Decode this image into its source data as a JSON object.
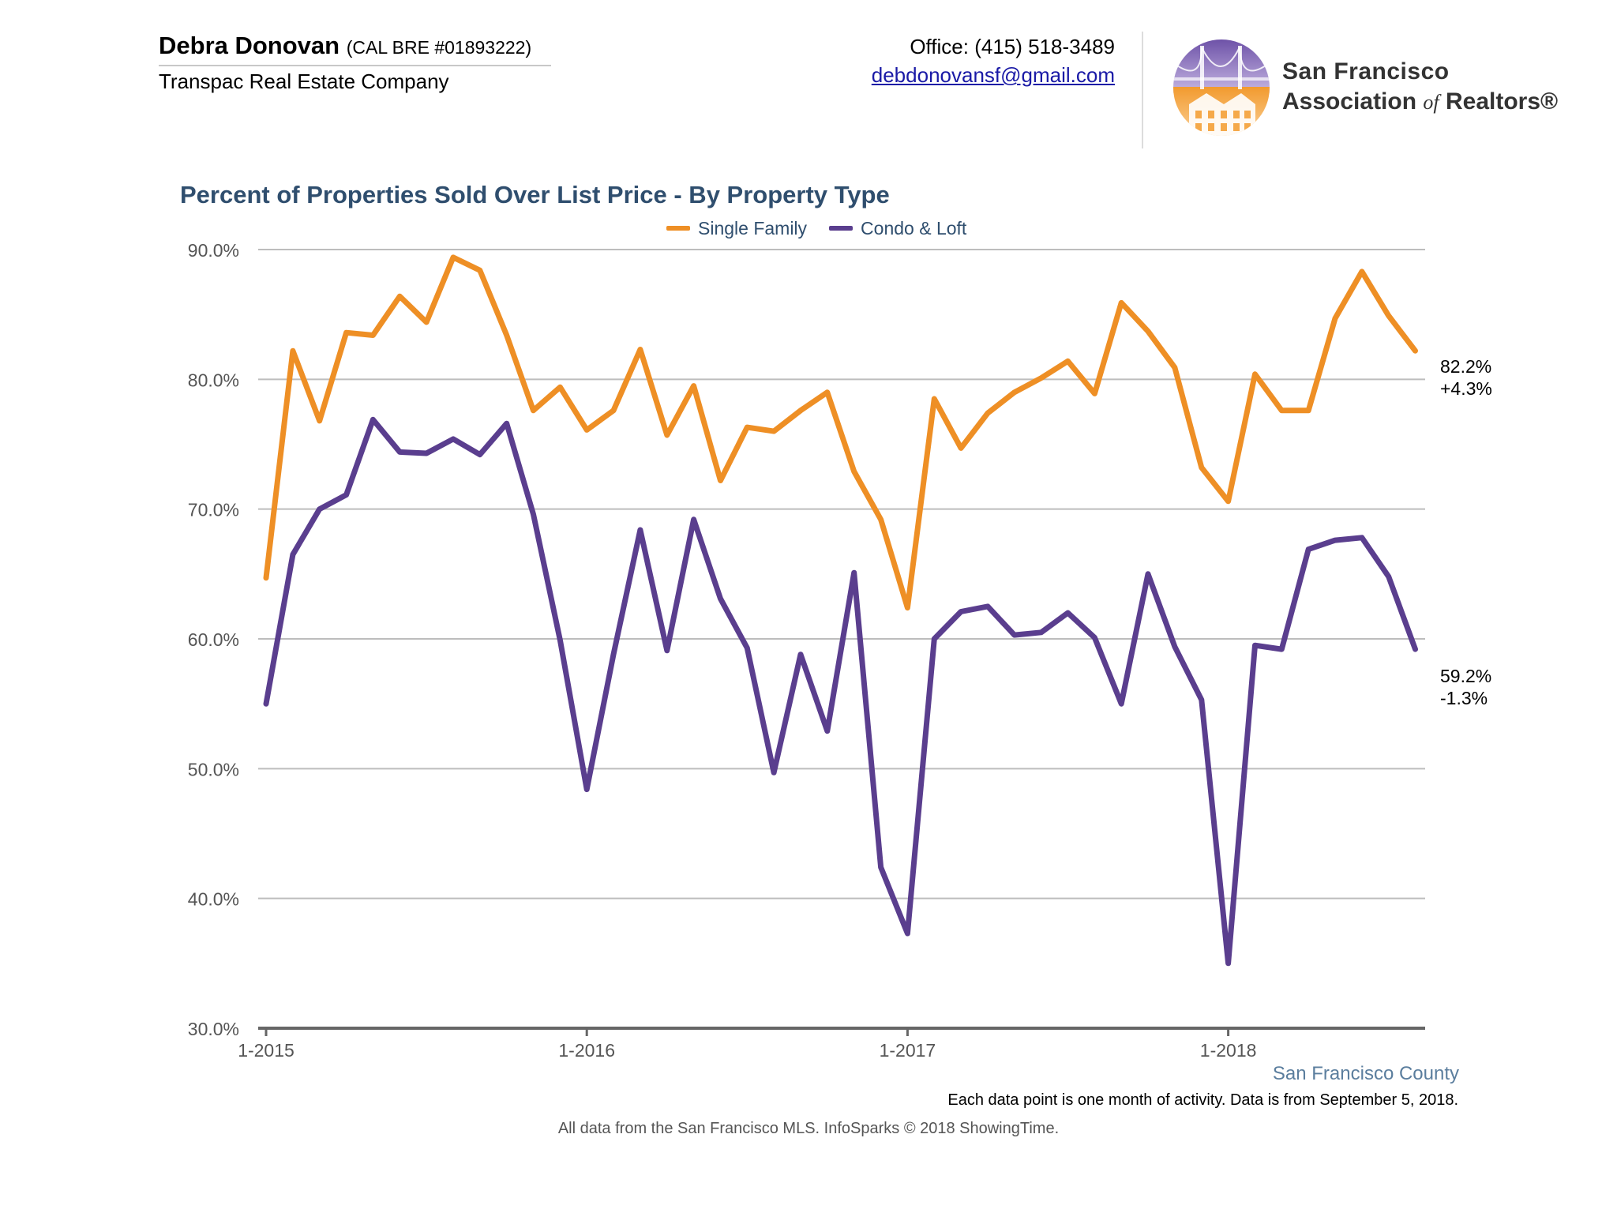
{
  "header": {
    "agent_name": "Debra Donovan",
    "agent_license": "(CAL BRE #01893222)",
    "company": "Transpac Real Estate Company",
    "phone": "Office: (415) 518-3489",
    "email": "debdonovansf@gmail.com",
    "logo_line1": "San Francisco",
    "logo_line2_pre": "Association",
    "logo_line2_of": "of",
    "logo_line2_post": "Realtors®"
  },
  "colors": {
    "single_family": "#ee8f25",
    "condo": "#5a3e8e",
    "title": "#2f4e6e",
    "grid": "#bdbdbd",
    "axis": "#666666"
  },
  "chart_data": {
    "type": "line",
    "title": "Percent of Properties Sold Over List Price - By Property Type",
    "xlabel": "",
    "ylabel": "",
    "ylim": [
      30,
      90
    ],
    "yticks": [
      "90.0%",
      "80.0%",
      "70.0%",
      "60.0%",
      "50.0%",
      "40.0%",
      "30.0%"
    ],
    "ytick_values": [
      90,
      80,
      70,
      60,
      50,
      40,
      30
    ],
    "xticks": [
      "1-2015",
      "1-2016",
      "1-2017",
      "1-2018"
    ],
    "xtick_index": [
      0,
      12,
      24,
      36
    ],
    "x": [
      "1-2015",
      "2-2015",
      "3-2015",
      "4-2015",
      "5-2015",
      "6-2015",
      "7-2015",
      "8-2015",
      "9-2015",
      "10-2015",
      "11-2015",
      "12-2015",
      "1-2016",
      "2-2016",
      "3-2016",
      "4-2016",
      "5-2016",
      "6-2016",
      "7-2016",
      "8-2016",
      "9-2016",
      "10-2016",
      "11-2016",
      "12-2016",
      "1-2017",
      "2-2017",
      "3-2017",
      "4-2017",
      "5-2017",
      "6-2017",
      "7-2017",
      "8-2017",
      "9-2017",
      "10-2017",
      "11-2017",
      "12-2017",
      "1-2018",
      "2-2018",
      "3-2018",
      "4-2018",
      "5-2018",
      "6-2018",
      "7-2018",
      "8-2018"
    ],
    "grid": true,
    "legend_position": "top-center",
    "series": [
      {
        "name": "Single Family",
        "end_label": "82.2%",
        "end_change": "+4.3%",
        "values": [
          64.7,
          82.2,
          76.8,
          83.6,
          83.4,
          86.4,
          84.4,
          89.4,
          88.4,
          83.4,
          77.6,
          79.4,
          76.1,
          77.6,
          82.3,
          75.7,
          79.5,
          72.2,
          76.3,
          76.0,
          77.6,
          79.0,
          72.9,
          69.2,
          62.4,
          78.5,
          74.7,
          77.4,
          79.0,
          80.1,
          81.4,
          78.9,
          85.9,
          83.7,
          80.9,
          73.2,
          70.6,
          80.4,
          77.6,
          77.6,
          84.7,
          88.3,
          84.9,
          82.2
        ]
      },
      {
        "name": "Condo & Loft",
        "end_label": "59.2%",
        "end_change": "-1.3%",
        "values": [
          55.0,
          66.5,
          70.0,
          71.1,
          76.9,
          74.4,
          74.3,
          75.4,
          74.2,
          76.6,
          69.6,
          59.9,
          48.4,
          58.8,
          68.4,
          59.1,
          69.2,
          63.1,
          59.3,
          49.7,
          58.8,
          52.9,
          65.1,
          42.4,
          37.3,
          60.0,
          62.1,
          62.5,
          60.3,
          60.5,
          62.0,
          60.1,
          55.0,
          65.0,
          59.4,
          55.3,
          35.0,
          59.5,
          59.2,
          66.9,
          67.6,
          67.8,
          64.8,
          59.2
        ]
      }
    ]
  },
  "footer": {
    "region": "San Francisco County",
    "note": "Each data point is one month of activity. Data is from September 5, 2018.",
    "source": "All data from the San Francisco MLS. InfoSparks © 2018 ShowingTime."
  }
}
